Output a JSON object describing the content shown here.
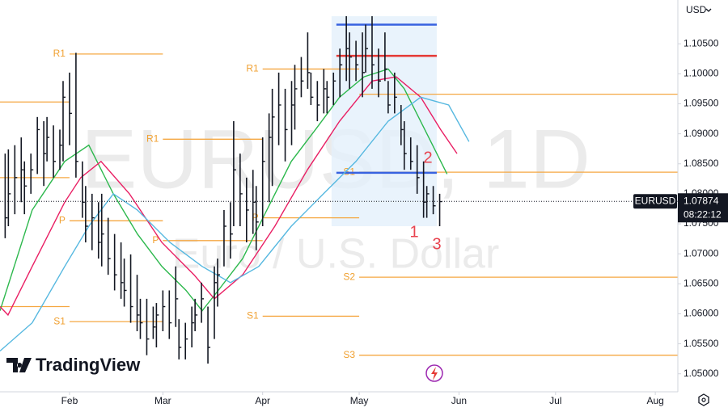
{
  "chart_data": {
    "type": "ohlc",
    "watermark": "EURUSD, 1D",
    "description": "Euro / U.S. Dollar",
    "brand": "TradingView",
    "currency": "USD",
    "symbol_label": "EURUSD",
    "countdown": "08:22:12",
    "last_price": {
      "value": 1.07874,
      "label": "1.07874"
    },
    "annotations": [
      "1",
      "2",
      "3"
    ],
    "color": "#131722",
    "x": [
      12,
      13,
      15,
      17,
      18,
      20,
      22,
      24,
      25,
      27,
      29,
      30,
      32,
      34,
      36,
      37,
      39,
      41,
      42,
      44,
      46,
      48,
      49,
      51,
      53,
      54,
      56,
      58,
      59,
      61,
      63,
      65,
      66,
      68,
      70,
      71,
      73,
      75,
      77,
      78,
      80,
      82,
      83,
      85,
      87,
      89,
      90,
      92,
      94,
      95,
      97,
      99,
      101,
      102,
      104,
      106,
      107,
      109,
      111,
      112,
      114,
      116,
      118,
      119,
      121,
      123,
      124,
      126,
      128,
      130,
      131,
      133,
      135,
      136,
      138,
      140,
      142,
      143,
      145,
      147
    ],
    "high": [
      1.0867,
      1.0874,
      1.0881,
      1.0894,
      1.0854,
      1.0867,
      1.0928,
      1.0921,
      1.0928,
      1.0914,
      1.0907,
      1.0988,
      1.1002,
      1.1035,
      1.0854,
      1.0813,
      1.08,
      1.0786,
      1.08,
      1.076,
      1.0733,
      1.0719,
      1.0692,
      1.0699,
      1.0665,
      1.0625,
      1.0625,
      1.0612,
      1.0618,
      1.0639,
      1.0639,
      1.0679,
      1.0591,
      1.0585,
      1.0612,
      1.0625,
      1.0652,
      1.0612,
      1.0679,
      1.0692,
      1.0773,
      1.0786,
      1.0921,
      1.0867,
      1.0827,
      1.084,
      1.0813,
      1.0894,
      1.0934,
      1.0975,
      1.1002,
      1.0975,
      1.0988,
      1.1015,
      1.1028,
      1.1069,
      1.1002,
      1.0988,
      1.1008,
      1.0988,
      1.1002,
      1.1042,
      1.1096,
      1.1069,
      1.1055,
      1.1069,
      1.1082,
      1.1096,
      1.1042,
      1.1069,
      1.0988,
      1.1002,
      1.0948,
      1.0921,
      1.0894,
      1.0881,
      1.0854,
      1.0813,
      1.0813,
      1.08
    ],
    "low": [
      1.0726,
      1.0746,
      1.0766,
      1.0786,
      1.0766,
      1.08,
      1.0833,
      1.0813,
      1.0854,
      1.0827,
      1.084,
      1.0854,
      1.0881,
      1.0827,
      1.076,
      1.0719,
      1.0706,
      1.0692,
      1.0679,
      1.0665,
      1.0639,
      1.0625,
      1.0612,
      1.0585,
      1.0571,
      1.0558,
      1.0531,
      1.0558,
      1.0544,
      1.0571,
      1.0558,
      1.0578,
      1.0524,
      1.0524,
      1.0544,
      1.0571,
      1.0585,
      1.0517,
      1.0558,
      1.0612,
      1.0679,
      1.0692,
      1.0746,
      1.0746,
      1.0719,
      1.0733,
      1.0706,
      1.0746,
      1.0786,
      1.0813,
      1.0881,
      1.0854,
      1.0881,
      1.0907,
      1.0961,
      1.0975,
      1.0948,
      1.0921,
      1.0934,
      1.0934,
      1.0948,
      1.0961,
      1.0988,
      1.0975,
      1.0988,
      1.0961,
      1.1002,
      1.0975,
      1.0961,
      1.0988,
      1.0934,
      1.0934,
      1.0881,
      1.084,
      1.084,
      1.08,
      1.076,
      1.076,
      1.0766,
      1.0746
    ],
    "close": [
      1.076,
      1.08,
      1.0827,
      1.084,
      1.0813,
      1.084,
      1.0907,
      1.0867,
      1.0894,
      1.0854,
      1.0881,
      1.0961,
      1.0934,
      1.0854,
      1.0786,
      1.0746,
      1.076,
      1.0719,
      1.0733,
      1.0692,
      1.0665,
      1.0652,
      1.0639,
      1.0612,
      1.0598,
      1.0585,
      1.0558,
      1.0578,
      1.0598,
      1.0612,
      1.0585,
      1.0625,
      1.0544,
      1.0558,
      1.0585,
      1.0598,
      1.0625,
      1.0544,
      1.0652,
      1.0665,
      1.0746,
      1.0733,
      1.084,
      1.08,
      1.0773,
      1.0786,
      1.0753,
      1.0854,
      1.0894,
      1.0928,
      1.0948,
      1.0907,
      1.0948,
      1.0975,
      1.0988,
      1.1002,
      1.0961,
      1.0948,
      1.0975,
      1.0961,
      1.0988,
      1.1015,
      1.1042,
      1.1028,
      1.1015,
      1.1002,
      1.1042,
      1.1015,
      1.0988,
      1.1008,
      1.0948,
      1.0961,
      1.0907,
      1.0867,
      1.0854,
      1.0827,
      1.0786,
      1.08,
      1.078,
      1.0787
    ],
    "moving_averages": [
      {
        "color": "#2db84d",
        "x": [
          10.4,
          20.4,
          30.5,
          38.0,
          45.6,
          53.1,
          60.7,
          68.2,
          73.2,
          78.2,
          85.8,
          93.3,
          100.9,
          108.4,
          115.9,
          123.5,
          131.0,
          136.0,
          143.6,
          149.3
        ],
        "values": [
          1.0605,
          1.0773,
          1.0854,
          1.0881,
          1.08,
          1.0733,
          1.0679,
          1.0639,
          1.0605,
          1.0639,
          1.0692,
          1.0773,
          1.0854,
          1.0907,
          1.0961,
          1.0995,
          1.1008,
          1.0975,
          1.0894,
          1.0833
        ]
      },
      {
        "color": "#e91e63",
        "x": [
          10.4,
          12.9,
          20.4,
          30.5,
          35.5,
          41.8,
          50.6,
          60.7,
          70.7,
          77.0,
          85.8,
          95.8,
          105.9,
          115.9,
          126.0,
          133.5,
          141.1,
          147.3,
          152.4
        ],
        "values": [
          1.0612,
          1.0598,
          1.0679,
          1.0786,
          1.0827,
          1.0854,
          1.08,
          1.0719,
          1.0665,
          1.0625,
          1.0665,
          1.0746,
          1.084,
          1.0921,
          1.0988,
          1.0995,
          1.0961,
          1.0907,
          1.0867
        ]
      },
      {
        "color": "#56b8e0",
        "x": [
          10.4,
          20.4,
          30.5,
          38.0,
          45.6,
          53.1,
          63.2,
          73.2,
          82.0,
          90.8,
          100.9,
          110.9,
          121.0,
          131.0,
          141.1,
          149.8,
          156.1
        ],
        "values": [
          1.0538,
          1.0585,
          1.0679,
          1.0746,
          1.08,
          1.0773,
          1.0719,
          1.0679,
          1.0652,
          1.0679,
          1.0746,
          1.08,
          1.0854,
          1.0921,
          1.0961,
          1.0948,
          1.0887
        ]
      }
    ],
    "pivot_color": "#f5a742",
    "pivots": [
      {
        "label": "R1",
        "value": 1.1033,
        "x": [
          32,
          61
        ]
      },
      {
        "label": null,
        "value": 1.0953,
        "x": [
          10.4,
          32
        ]
      },
      {
        "label": "R1",
        "value": 1.0891,
        "x": [
          61,
          92
        ]
      },
      {
        "label": "R1",
        "value": 1.1008,
        "x": [
          92,
          122
        ]
      },
      {
        "label": null,
        "value": 1.0827,
        "x": [
          10.4,
          32
        ]
      },
      {
        "label": "P",
        "value": 1.0755,
        "x": [
          32,
          61
        ]
      },
      {
        "label": "P",
        "value": 1.0722,
        "x": [
          61,
          92
        ]
      },
      {
        "label": "P",
        "value": 1.076,
        "x": [
          92,
          122
        ]
      },
      {
        "label": null,
        "value": 1.0612,
        "x": [
          10.4,
          32
        ]
      },
      {
        "label": "S1",
        "value": 1.0587,
        "x": [
          32,
          61
        ]
      },
      {
        "label": "S1",
        "value": 1.0596,
        "x": [
          92,
          122
        ]
      },
      {
        "label": null,
        "value": 1.0966,
        "x": [
          122,
          221
        ]
      },
      {
        "label": "S1",
        "value": 1.0836,
        "x": [
          122,
          221
        ]
      },
      {
        "label": "S2",
        "value": 1.0661,
        "x": [
          122,
          221
        ]
      },
      {
        "label": "S3",
        "value": 1.0531,
        "x": [
          122,
          221
        ]
      }
    ],
    "profile": {
      "x": [
        113.4,
        146.1
      ],
      "price_range": [
        1.0746,
        1.1096
      ],
      "vah": 1.1082,
      "poc": 1.103,
      "val": 1.0835,
      "va_color": "#3862e0",
      "poc_color": "#e53935",
      "fill": "#e3f0fb"
    },
    "xlim": [
      10.4,
      221
    ],
    "ylim": [
      1.047,
      1.1123
    ],
    "xticks": [
      {
        "value": 32,
        "label": "Feb"
      },
      {
        "value": 61,
        "label": "Mar"
      },
      {
        "value": 92,
        "label": "Apr"
      },
      {
        "value": 122,
        "label": "May"
      },
      {
        "value": 153,
        "label": "Jun"
      },
      {
        "value": 183,
        "label": "Jul"
      },
      {
        "value": 214,
        "label": "Aug"
      }
    ],
    "yticks": [
      {
        "value": 1.05,
        "label": "1.05000"
      },
      {
        "value": 1.055,
        "label": "1.05500"
      },
      {
        "value": 1.06,
        "label": "1.06000"
      },
      {
        "value": 1.065,
        "label": "1.06500"
      },
      {
        "value": 1.07,
        "label": "1.07000"
      },
      {
        "value": 1.075,
        "label": "1.07500"
      },
      {
        "value": 1.08,
        "label": "1.08000"
      },
      {
        "value": 1.085,
        "label": "1.08500"
      },
      {
        "value": 1.09,
        "label": "1.09000"
      },
      {
        "value": 1.095,
        "label": "1.09500"
      },
      {
        "value": 1.1,
        "label": "1.10000"
      },
      {
        "value": 1.105,
        "label": "1.10500"
      }
    ]
  }
}
